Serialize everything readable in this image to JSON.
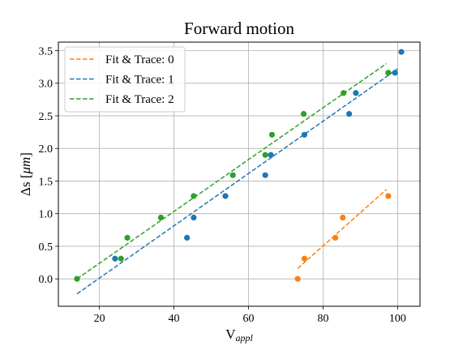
{
  "chart_data": {
    "type": "scatter",
    "title": "Forward motion",
    "xlabel_main": "V",
    "xlabel_sub": "appl",
    "ylabel_main": "Δs [",
    "ylabel_unit": "μm",
    "ylabel_end": "]",
    "xlim": [
      9,
      106
    ],
    "ylim": [
      -0.42,
      3.63
    ],
    "xticks": [
      20,
      40,
      60,
      80,
      100
    ],
    "yticks": [
      0.0,
      0.5,
      1.0,
      1.5,
      2.0,
      2.5,
      3.0,
      3.5
    ],
    "grid": true,
    "legend_position": "top-left",
    "series": [
      {
        "name": "Fit & Trace: 0",
        "color": "#ff7f0e",
        "points": [
          [
            73.2,
            0.0
          ],
          [
            75.0,
            0.31
          ],
          [
            83.3,
            0.63
          ],
          [
            85.3,
            0.94
          ],
          [
            97.5,
            1.27
          ]
        ],
        "fit": [
          [
            73.2,
            0.16
          ],
          [
            97.0,
            1.37
          ]
        ]
      },
      {
        "name": "Fit & Trace: 1",
        "color": "#1f77b4",
        "points": [
          [
            24.2,
            0.31
          ],
          [
            43.5,
            0.63
          ],
          [
            45.3,
            0.94
          ],
          [
            53.8,
            1.27
          ],
          [
            64.5,
            1.59
          ],
          [
            66.0,
            1.9
          ],
          [
            75.0,
            2.21
          ],
          [
            87.0,
            2.53
          ],
          [
            88.8,
            2.85
          ],
          [
            99.3,
            3.16
          ],
          [
            101.0,
            3.48
          ]
        ],
        "fit": [
          [
            14.0,
            -0.23
          ],
          [
            100.0,
            3.22
          ]
        ]
      },
      {
        "name": "Fit & Trace: 2",
        "color": "#2ca02c",
        "points": [
          [
            14.0,
            0.0
          ],
          [
            25.8,
            0.31
          ],
          [
            27.5,
            0.63
          ],
          [
            36.5,
            0.94
          ],
          [
            45.3,
            1.27
          ],
          [
            55.8,
            1.59
          ],
          [
            64.5,
            1.9
          ],
          [
            66.3,
            2.21
          ],
          [
            74.8,
            2.53
          ],
          [
            85.5,
            2.85
          ],
          [
            97.5,
            3.16
          ]
        ],
        "fit": [
          [
            14.0,
            0.0
          ],
          [
            97.0,
            3.3
          ]
        ]
      }
    ]
  }
}
